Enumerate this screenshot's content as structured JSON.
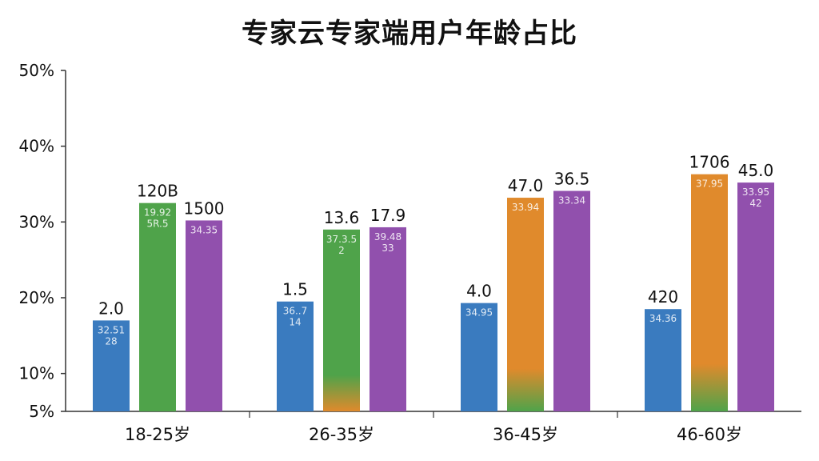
{
  "chart_data": {
    "type": "bar",
    "title": "专家云专家端用户年龄占比",
    "xlabel": "",
    "ylabel": "",
    "ylim": [
      5,
      50
    ],
    "yticks": [
      5,
      10,
      20,
      30,
      40,
      50
    ],
    "ytick_labels": [
      "5%",
      "10%",
      "20%",
      "30%",
      "40%",
      "50%"
    ],
    "grid": false,
    "legend": "none",
    "categories": [
      "18-25岁",
      "26-35岁",
      "36-45岁",
      "46-60岁"
    ],
    "groups": [
      {
        "category": "18-25岁",
        "bars": [
          {
            "value": 17,
            "color": "#3a7bbf",
            "fade": "",
            "top_label": "2.0",
            "inner_label": "32.51 28"
          },
          {
            "value": 32.5,
            "color": "#4fa34a",
            "fade": "",
            "top_label": "120B",
            "inner_label": "19.92 5R.5"
          },
          {
            "value": 30.2,
            "color": "#9150ad",
            "fade": "",
            "top_label": "1500",
            "inner_label": "34.35"
          }
        ]
      },
      {
        "category": "26-35岁",
        "bars": [
          {
            "value": 19.5,
            "color": "#3a7bbf",
            "fade": "",
            "top_label": "1.5",
            "inner_label": "36..7 14"
          },
          {
            "value": 29,
            "color": "#4fa34a",
            "fade": "#e08a2c",
            "top_label": "13.6",
            "inner_label": "37.3.5 2"
          },
          {
            "value": 29.3,
            "color": "#9150ad",
            "fade": "",
            "top_label": "17.9",
            "inner_label": "39.48 33"
          }
        ]
      },
      {
        "category": "36-45岁",
        "bars": [
          {
            "value": 19.3,
            "color": "#3a7bbf",
            "fade": "",
            "top_label": "4.0",
            "inner_label": "34.95"
          },
          {
            "value": 33.2,
            "color": "#e08a2c",
            "fade": "#4fa34a",
            "top_label": "47.0",
            "inner_label": "33.94"
          },
          {
            "value": 34.1,
            "color": "#9150ad",
            "fade": "",
            "top_label": "36.5",
            "inner_label": "33.34"
          }
        ]
      },
      {
        "category": "46-60岁",
        "bars": [
          {
            "value": 18.5,
            "color": "#3a7bbf",
            "fade": "",
            "top_label": "420",
            "inner_label": "34.36"
          },
          {
            "value": 36.3,
            "color": "#e08a2c",
            "fade": "#4fa34a",
            "top_label": "1706",
            "inner_label": "37.95"
          },
          {
            "value": 35.2,
            "color": "#9150ad",
            "fade": "",
            "top_label": "45.0",
            "inner_label": "33.95 42"
          }
        ]
      }
    ]
  }
}
